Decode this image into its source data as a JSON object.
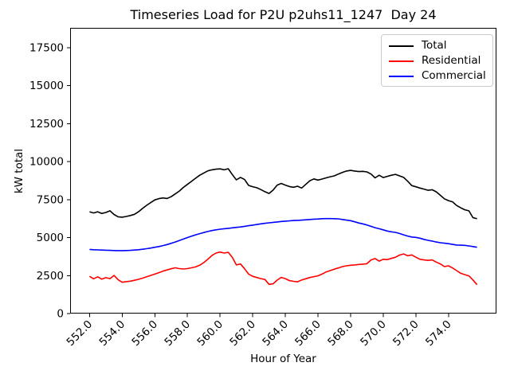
{
  "chart_data": {
    "type": "line",
    "title": "Timeseries Load for P2U p2uhs11_1247  Day 24",
    "xlabel": "Hour of Year",
    "ylabel": "kW total",
    "grid": false,
    "legend_position": "upper right",
    "xlim": [
      550.81,
      576.94
    ],
    "ylim": [
      0,
      18800
    ],
    "xtick_values": [
      552,
      554,
      556,
      558,
      560,
      562,
      564,
      566,
      568,
      570,
      572,
      574
    ],
    "xtick_labels": [
      "552.0",
      "554.0",
      "556.0",
      "558.0",
      "560.0",
      "562.0",
      "564.0",
      "566.0",
      "568.0",
      "570.0",
      "572.0",
      "574.0"
    ],
    "ytick_values": [
      0,
      2500,
      5000,
      7500,
      10000,
      12500,
      15000,
      17500
    ],
    "ytick_labels": [
      "0",
      "2500",
      "5000",
      "7500",
      "10000",
      "12500",
      "15000",
      "17500"
    ],
    "x": [
      552.0,
      552.25,
      552.5,
      552.75,
      553.0,
      553.25,
      553.5,
      553.75,
      554.0,
      554.25,
      554.5,
      554.75,
      555.0,
      555.25,
      555.5,
      555.75,
      556.0,
      556.25,
      556.5,
      556.75,
      557.0,
      557.25,
      557.5,
      557.75,
      558.0,
      558.25,
      558.5,
      558.75,
      559.0,
      559.25,
      559.5,
      559.75,
      560.0,
      560.25,
      560.5,
      560.75,
      561.0,
      561.25,
      561.5,
      561.75,
      562.0,
      562.25,
      562.5,
      562.75,
      563.0,
      563.25,
      563.5,
      563.75,
      564.0,
      564.25,
      564.5,
      564.75,
      565.0,
      565.25,
      565.5,
      565.75,
      566.0,
      566.25,
      566.5,
      566.75,
      567.0,
      567.25,
      567.5,
      567.75,
      568.0,
      568.25,
      568.5,
      568.75,
      569.0,
      569.25,
      569.5,
      569.75,
      570.0,
      570.25,
      570.5,
      570.75,
      571.0,
      571.25,
      571.5,
      571.75,
      572.0,
      572.25,
      572.5,
      572.75,
      573.0,
      573.25,
      573.5,
      573.75,
      574.0,
      574.25,
      574.5,
      574.75,
      575.0,
      575.25,
      575.5,
      575.75
    ],
    "series": [
      {
        "name": "Total",
        "color": "#000000",
        "values": [
          6700,
          6620,
          6700,
          6590,
          6650,
          6760,
          6520,
          6370,
          6340,
          6390,
          6450,
          6530,
          6700,
          6920,
          7120,
          7300,
          7480,
          7560,
          7610,
          7570,
          7690,
          7870,
          8060,
          8300,
          8500,
          8700,
          8900,
          9100,
          9250,
          9390,
          9460,
          9500,
          9520,
          9460,
          9530,
          9150,
          8800,
          8960,
          8820,
          8430,
          8350,
          8280,
          8160,
          8020,
          7900,
          8120,
          8450,
          8560,
          8450,
          8360,
          8310,
          8380,
          8260,
          8500,
          8740,
          8860,
          8780,
          8850,
          8930,
          9000,
          9060,
          9180,
          9290,
          9380,
          9420,
          9380,
          9340,
          9360,
          9320,
          9180,
          8930,
          9100,
          8950,
          9030,
          9100,
          9160,
          9060,
          8960,
          8710,
          8420,
          8340,
          8260,
          8190,
          8110,
          8150,
          8010,
          7780,
          7550,
          7430,
          7350,
          7110,
          6960,
          6830,
          6760,
          6310,
          6240
        ]
      },
      {
        "name": "Residential",
        "color": "#ff0000",
        "values": [
          2450,
          2290,
          2420,
          2260,
          2360,
          2300,
          2510,
          2230,
          2060,
          2100,
          2130,
          2190,
          2250,
          2330,
          2420,
          2510,
          2600,
          2690,
          2790,
          2870,
          2950,
          3010,
          2960,
          2930,
          2960,
          3010,
          3070,
          3180,
          3350,
          3570,
          3820,
          3980,
          4050,
          3980,
          4030,
          3700,
          3200,
          3260,
          2950,
          2600,
          2450,
          2370,
          2300,
          2240,
          1920,
          1960,
          2200,
          2380,
          2300,
          2170,
          2120,
          2090,
          2210,
          2290,
          2370,
          2430,
          2480,
          2600,
          2740,
          2830,
          2920,
          3000,
          3090,
          3140,
          3180,
          3200,
          3230,
          3250,
          3280,
          3530,
          3620,
          3450,
          3570,
          3550,
          3630,
          3710,
          3850,
          3920,
          3800,
          3860,
          3710,
          3570,
          3530,
          3500,
          3530,
          3390,
          3270,
          3090,
          3140,
          3000,
          2830,
          2650,
          2560,
          2480,
          2210,
          1900
        ]
      },
      {
        "name": "Commercial",
        "color": "#0000ff",
        "values": [
          4220,
          4200,
          4190,
          4180,
          4170,
          4160,
          4150,
          4140,
          4140,
          4150,
          4160,
          4180,
          4200,
          4230,
          4270,
          4310,
          4360,
          4410,
          4470,
          4540,
          4620,
          4710,
          4800,
          4900,
          5000,
          5090,
          5180,
          5260,
          5330,
          5400,
          5460,
          5510,
          5550,
          5580,
          5610,
          5640,
          5670,
          5700,
          5740,
          5780,
          5820,
          5860,
          5900,
          5940,
          5970,
          6000,
          6030,
          6060,
          6080,
          6100,
          6120,
          6130,
          6150,
          6170,
          6190,
          6210,
          6220,
          6240,
          6250,
          6250,
          6240,
          6230,
          6190,
          6150,
          6110,
          6040,
          5960,
          5900,
          5830,
          5740,
          5650,
          5580,
          5510,
          5430,
          5380,
          5340,
          5270,
          5180,
          5100,
          5040,
          5010,
          4960,
          4880,
          4820,
          4770,
          4710,
          4660,
          4630,
          4600,
          4550,
          4510,
          4500,
          4490,
          4450,
          4410,
          4360
        ]
      }
    ]
  }
}
